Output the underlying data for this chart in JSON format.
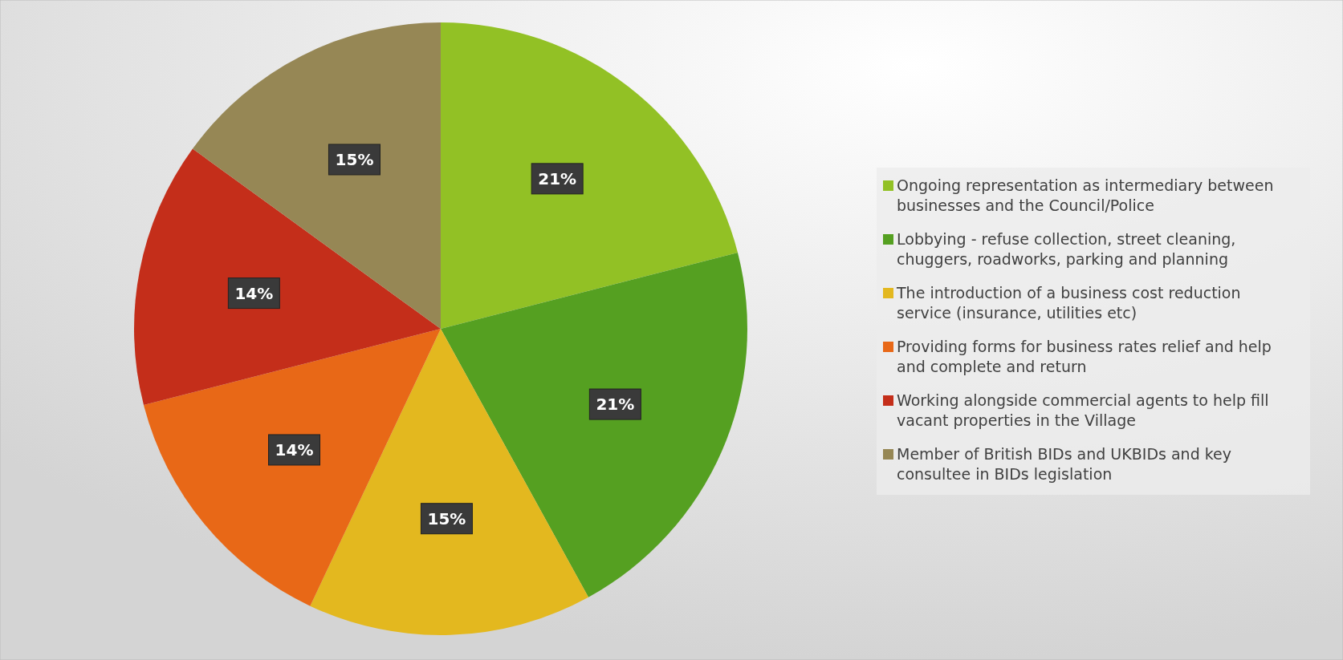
{
  "chart_data": {
    "type": "pie",
    "categories": [
      "Ongoing representation as intermediary between businesses and the Council/Police",
      "Lobbying - refuse collection, street cleaning, chuggers, roadworks, parking and planning",
      "The introduction of a business cost reduction service (insurance, utilities etc)",
      "Providing forms for business rates relief and help and complete and return",
      "Working alongside commercial agents to help fill vacant properties in the Village",
      "Member of British BIDs and UKBIDs and key consultee in BIDs legislation"
    ],
    "values": [
      21,
      21,
      15,
      14,
      14,
      15
    ],
    "value_labels": [
      "21%",
      "21%",
      "15%",
      "14%",
      "14%",
      "15%"
    ],
    "colors": [
      "#92c125",
      "#55a021",
      "#e3b81f",
      "#e86817",
      "#c42e1a",
      "#968755"
    ],
    "legend": "right"
  }
}
